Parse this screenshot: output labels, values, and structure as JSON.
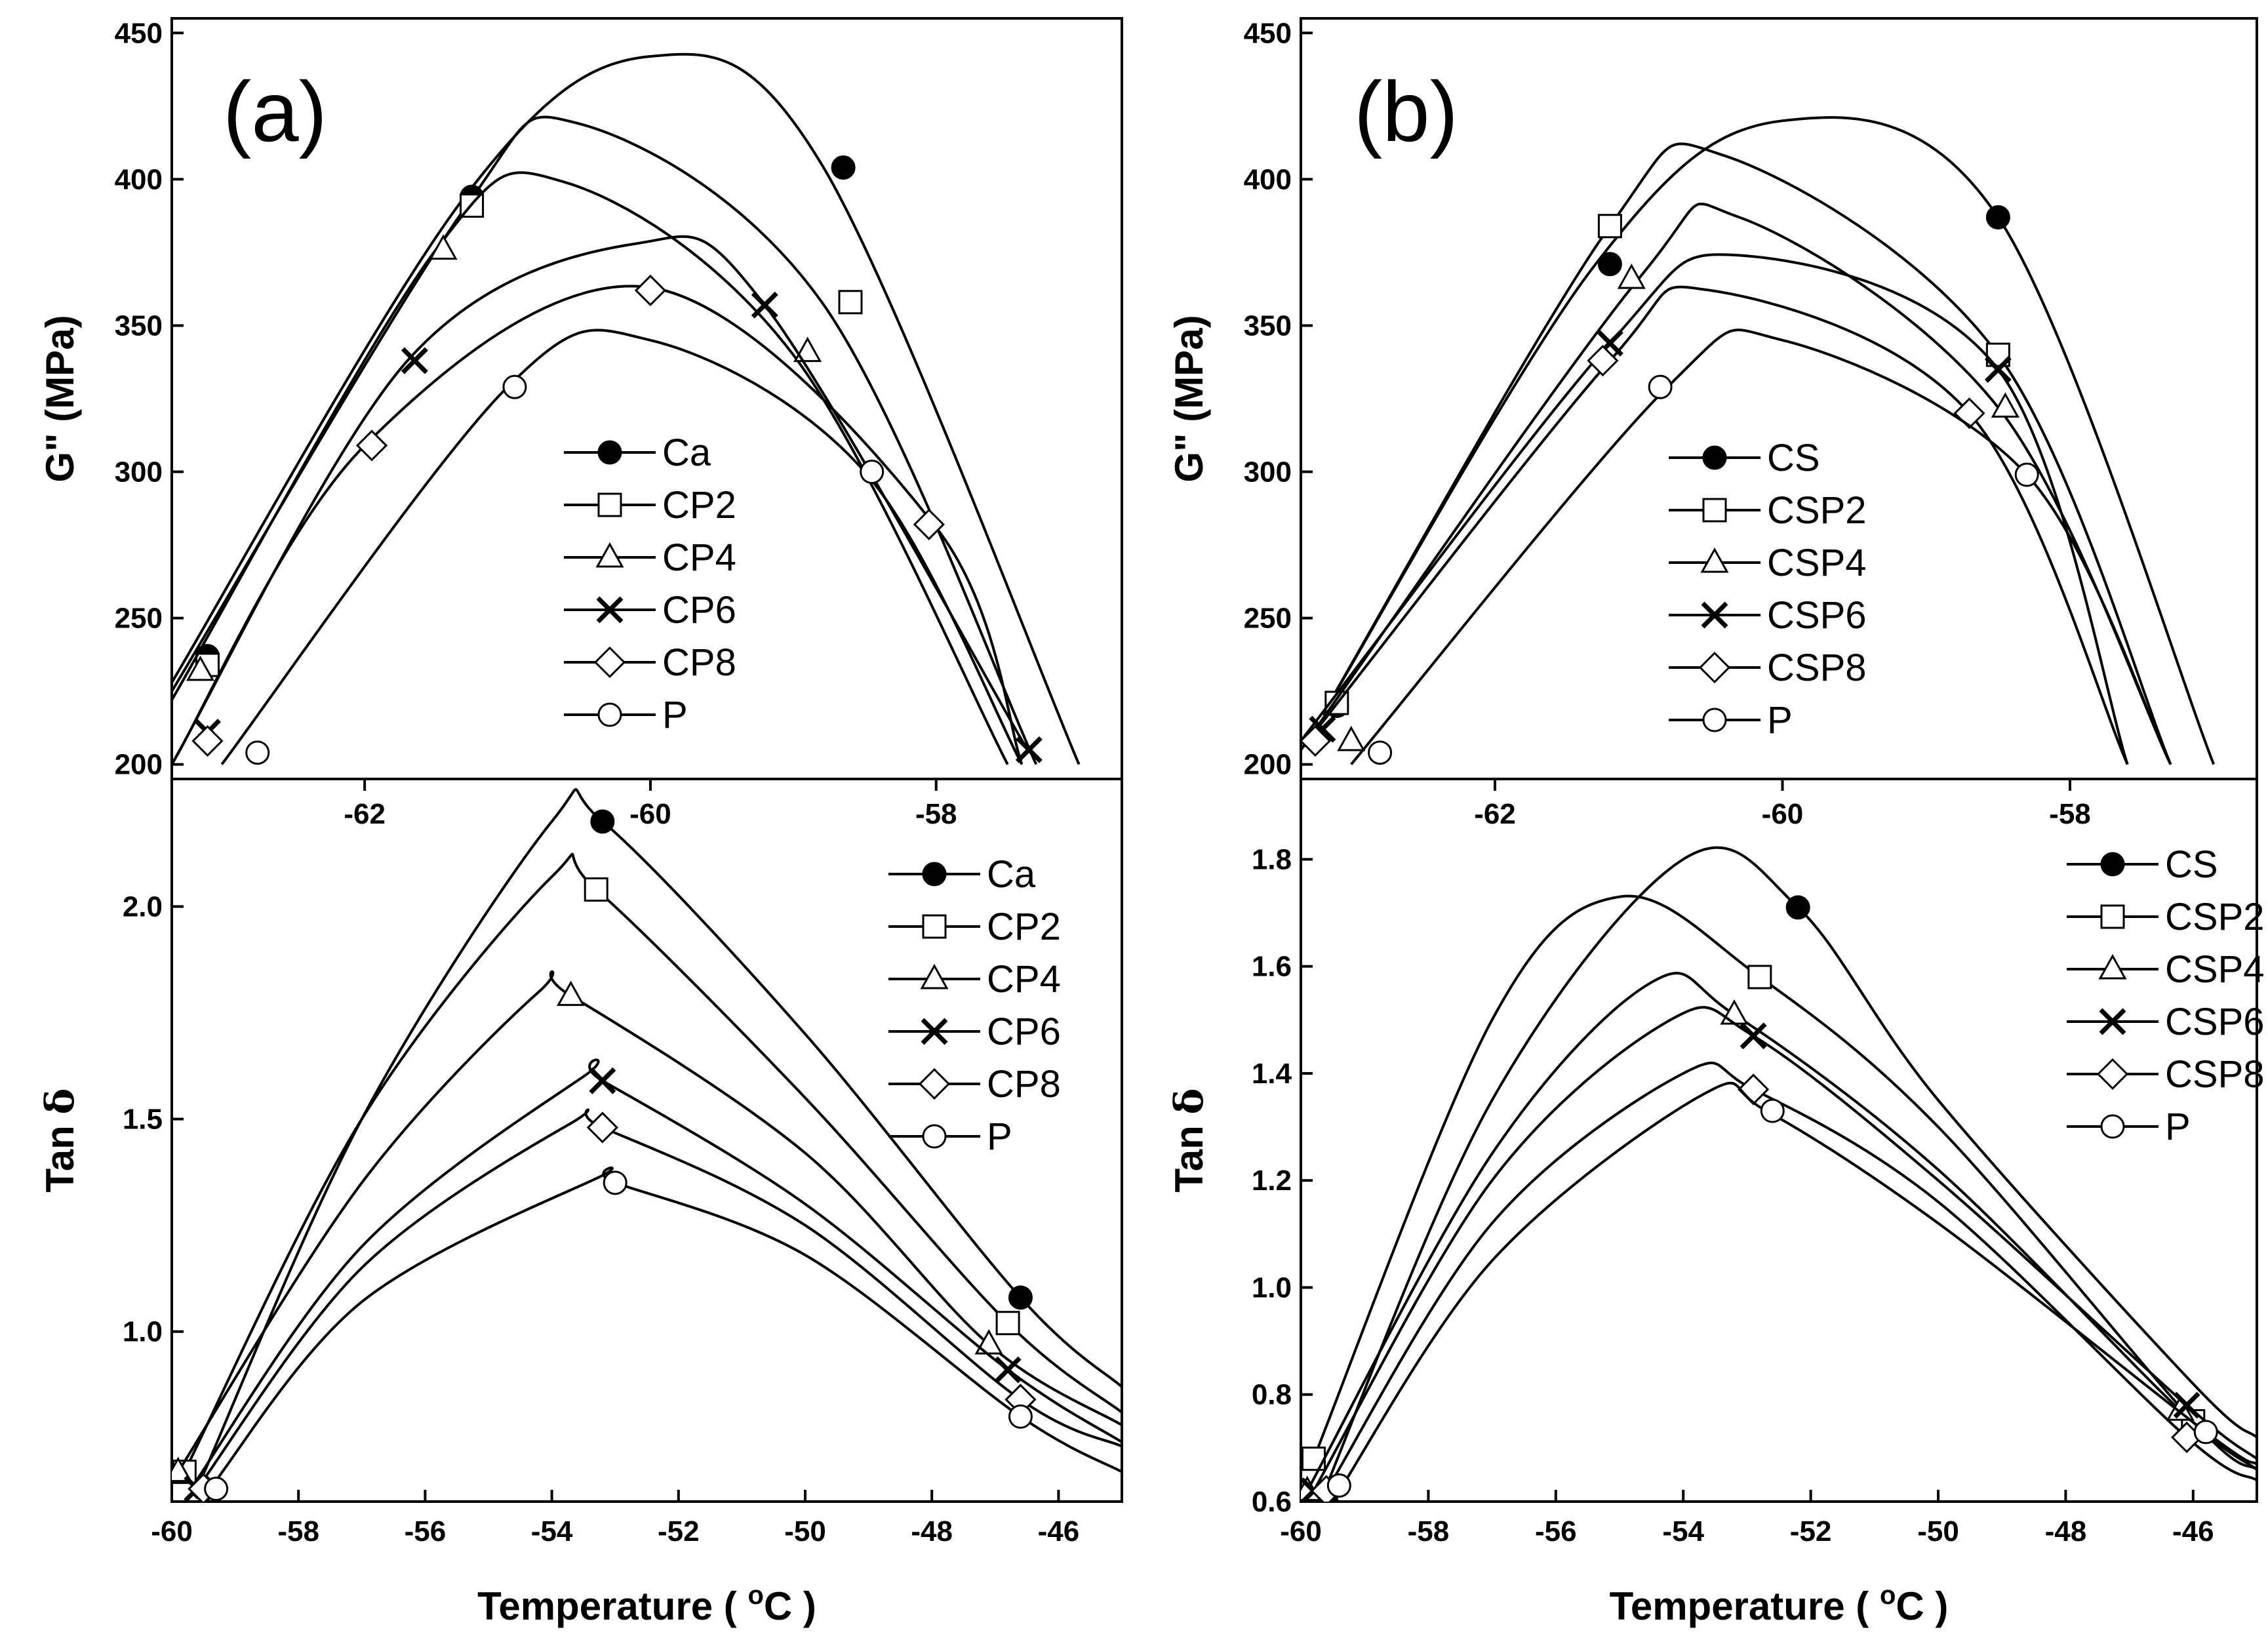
{
  "panel_tags": [
    "(a)",
    "(b)"
  ],
  "chart_data": [
    {
      "id": "a-top",
      "type": "line",
      "panel": "(a)",
      "ylabel": "G'' (MPa)",
      "xlim": [
        -63.35,
        -56.7
      ],
      "ylim": [
        195,
        455
      ],
      "xticks": [
        -62,
        -60,
        -58
      ],
      "yticks": [
        200,
        250,
        300,
        350,
        400,
        450
      ],
      "grid": false,
      "legend_position": "lower-middle",
      "series": [
        {
          "name": "Ca",
          "marker": "filled-circle",
          "x": [
            -63.35,
            -61.3,
            -60.0,
            -58.8,
            -57.0
          ],
          "y": [
            228,
            394,
            442,
            405,
            200
          ],
          "marker_x": [
            -63.1,
            -61.25,
            -58.65
          ],
          "marker_y": [
            237,
            394,
            404
          ]
        },
        {
          "name": "CP2",
          "marker": "open-square",
          "x": [
            -63.35,
            -61.3,
            -60.5,
            -58.8,
            -57.3
          ],
          "y": [
            225,
            390,
            419,
            358,
            200
          ],
          "marker_x": [
            -63.1,
            -61.25,
            -58.6
          ],
          "marker_y": [
            234,
            391,
            358
          ]
        },
        {
          "name": "CP4",
          "marker": "open-triangle",
          "x": [
            -63.35,
            -61.5,
            -60.6,
            -59.0,
            -57.5
          ],
          "y": [
            222,
            376,
            399,
            340,
            200
          ],
          "marker_x": [
            -63.15,
            -61.45,
            -58.9
          ],
          "marker_y": [
            232,
            376,
            341
          ]
        },
        {
          "name": "CP6",
          "marker": "x-cross",
          "x": [
            -63.35,
            -61.7,
            -60.1,
            -59.2,
            -57.35
          ],
          "y": [
            200,
            338,
            378,
            357,
            204
          ],
          "marker_x": [
            -63.1,
            -61.65,
            -59.2,
            -57.35
          ],
          "marker_y": [
            211,
            338,
            357,
            205
          ]
        },
        {
          "name": "CP8",
          "marker": "open-diamond",
          "x": [
            -63.35,
            -62.0,
            -60.0,
            -58.0,
            -57.4
          ],
          "y": [
            200,
            309,
            363,
            281,
            200
          ],
          "marker_x": [
            -63.1,
            -61.95,
            -60.0,
            -58.05
          ],
          "marker_y": [
            208,
            309,
            362,
            282
          ]
        },
        {
          "name": "P",
          "marker": "open-circle",
          "x": [
            -63.0,
            -61.0,
            -60.0,
            -58.5,
            -57.4
          ],
          "y": [
            200,
            329,
            345,
            300,
            200
          ],
          "marker_x": [
            -62.75,
            -60.95,
            -58.45
          ],
          "marker_y": [
            204,
            329,
            300
          ]
        }
      ]
    },
    {
      "id": "a-bottom",
      "type": "line",
      "panel": "(a)",
      "xlabel": "Temperature ( oC )",
      "ylabel": "Tan δ",
      "xlim": [
        -60,
        -45
      ],
      "ylim": [
        0.6,
        2.3
      ],
      "xticks": [
        -60,
        -58,
        -56,
        -54,
        -52,
        -50,
        -48,
        -46
      ],
      "yticks": [
        1.0,
        1.5,
        2.0
      ],
      "grid": false,
      "legend_position": "top-right",
      "series": [
        {
          "name": "Ca",
          "marker": "filled-circle",
          "x": [
            -59.6,
            -57.0,
            -54.0,
            -53.2,
            -50.0,
            -46.6,
            -45.0
          ],
          "y": [
            0.63,
            1.5,
            2.2,
            2.2,
            1.7,
            1.08,
            0.87
          ],
          "marker_x": [
            -59.5,
            -53.2,
            -46.6
          ],
          "marker_y": [
            0.63,
            2.2,
            1.08
          ]
        },
        {
          "name": "CP2",
          "marker": "open-square",
          "x": [
            -59.8,
            -57.0,
            -54.0,
            -53.3,
            -50.0,
            -46.8,
            -45.0
          ],
          "y": [
            0.67,
            1.5,
            2.07,
            2.04,
            1.55,
            1.02,
            0.81
          ],
          "marker_x": [
            -59.8,
            -53.3,
            -46.8
          ],
          "marker_y": [
            0.67,
            2.04,
            1.02
          ]
        },
        {
          "name": "CP4",
          "marker": "open-triangle",
          "x": [
            -59.9,
            -57.0,
            -54.2,
            -53.7,
            -50.0,
            -47.1,
            -45.0
          ],
          "y": [
            0.67,
            1.35,
            1.8,
            1.79,
            1.42,
            0.97,
            0.78
          ],
          "marker_x": [
            -59.9,
            -53.7,
            -47.1
          ],
          "marker_y": [
            0.67,
            1.79,
            0.97
          ]
        },
        {
          "name": "CP6",
          "marker": "x-cross",
          "x": [
            -59.7,
            -57.0,
            -53.5,
            -53.2,
            -50.0,
            -46.8,
            -45.0
          ],
          "y": [
            0.63,
            1.2,
            1.6,
            1.59,
            1.3,
            0.91,
            0.74
          ],
          "marker_x": [
            -59.6,
            -53.2,
            -46.8
          ],
          "marker_y": [
            0.63,
            1.59,
            0.91
          ]
        },
        {
          "name": "CP8",
          "marker": "open-diamond",
          "x": [
            -59.6,
            -57.0,
            -53.7,
            -53.2,
            -50.0,
            -46.6,
            -45.0
          ],
          "y": [
            0.63,
            1.15,
            1.49,
            1.48,
            1.25,
            0.84,
            0.73
          ],
          "marker_x": [
            -59.5,
            -53.2,
            -46.6
          ],
          "marker_y": [
            0.63,
            1.48,
            0.84
          ]
        },
        {
          "name": "P",
          "marker": "open-circle",
          "x": [
            -59.4,
            -57.0,
            -53.3,
            -53.0,
            -50.0,
            -46.6,
            -45.0
          ],
          "y": [
            0.63,
            1.07,
            1.36,
            1.35,
            1.18,
            0.8,
            0.67
          ],
          "marker_x": [
            -59.3,
            -53.0,
            -46.6
          ],
          "marker_y": [
            0.63,
            1.35,
            0.8
          ]
        }
      ]
    },
    {
      "id": "b-top",
      "type": "line",
      "panel": "(b)",
      "ylabel": "G'' (MPa)",
      "xlim": [
        -63.35,
        -56.7
      ],
      "ylim": [
        195,
        455
      ],
      "xticks": [
        -62,
        -60,
        -58
      ],
      "yticks": [
        200,
        250,
        300,
        350,
        400,
        450
      ],
      "grid": false,
      "legend_position": "lower-middle",
      "series": [
        {
          "name": "CS",
          "marker": "filled-circle",
          "x": [
            -63.2,
            -61.3,
            -60.0,
            -58.5,
            -57.0
          ],
          "y": [
            217,
            371,
            420,
            387,
            200
          ],
          "marker_x": [
            -63.1,
            -61.2,
            -58.5
          ],
          "marker_y": [
            220,
            371,
            387
          ]
        },
        {
          "name": "CSP2",
          "marker": "open-square",
          "x": [
            -63.2,
            -61.2,
            -60.4,
            -58.5,
            -57.3
          ],
          "y": [
            217,
            384,
            408,
            340,
            200
          ],
          "marker_x": [
            -63.1,
            -61.2,
            -58.5
          ],
          "marker_y": [
            221,
            384,
            340
          ]
        },
        {
          "name": "CSP4",
          "marker": "open-triangle",
          "x": [
            -63.35,
            -61.0,
            -60.3,
            -58.5,
            -57.3
          ],
          "y": [
            205,
            366,
            387,
            322,
            200
          ],
          "marker_x": [
            -63.0,
            -61.05,
            -58.45
          ],
          "marker_y": [
            208,
            366,
            322
          ]
        },
        {
          "name": "CSP6",
          "marker": "x-cross",
          "x": [
            -63.35,
            -61.2,
            -60.3,
            -58.5,
            -57.6
          ],
          "y": [
            208,
            344,
            374,
            335,
            200
          ],
          "marker_x": [
            -63.2,
            -61.2,
            -58.5
          ],
          "marker_y": [
            212,
            344,
            335
          ]
        },
        {
          "name": "CSP8",
          "marker": "open-diamond",
          "x": [
            -63.35,
            -61.2,
            -60.5,
            -58.7,
            -57.6
          ],
          "y": [
            205,
            338,
            362,
            320,
            200
          ],
          "marker_x": [
            -63.25,
            -61.25,
            -58.7
          ],
          "marker_y": [
            208,
            338,
            320
          ]
        },
        {
          "name": "P",
          "marker": "open-circle",
          "x": [
            -63.0,
            -60.8,
            -60.0,
            -58.3,
            -57.3
          ],
          "y": [
            200,
            329,
            345,
            299,
            200
          ],
          "marker_x": [
            -62.8,
            -60.85,
            -58.3
          ],
          "marker_y": [
            204,
            329,
            299
          ]
        }
      ]
    },
    {
      "id": "b-bottom",
      "type": "line",
      "panel": "(b)",
      "xlabel": "Temperature ( oC )",
      "ylabel": "Tan δ",
      "xlim": [
        -60,
        -45
      ],
      "ylim": [
        0.6,
        1.95
      ],
      "xticks": [
        -60,
        -58,
        -56,
        -54,
        -52,
        -50,
        -48,
        -46
      ],
      "yticks": [
        0.6,
        0.8,
        1.0,
        1.2,
        1.4,
        1.6,
        1.8
      ],
      "grid": false,
      "legend_position": "top-right",
      "series": [
        {
          "name": "CS",
          "marker": "filled-circle",
          "x": [
            -59.7,
            -57.0,
            -54.0,
            -52.2,
            -50.0,
            -46.0,
            -45.0
          ],
          "y": [
            0.6,
            1.35,
            1.8,
            1.71,
            1.35,
            0.82,
            0.72
          ],
          "marker_x": [
            -59.6,
            -52.2
          ],
          "marker_y": [
            0.6,
            1.71
          ]
        },
        {
          "name": "CSP2",
          "marker": "open-square",
          "x": [
            -59.8,
            -57.0,
            -55.0,
            -52.8,
            -50.0,
            -46.0,
            -45.0
          ],
          "y": [
            0.68,
            1.5,
            1.73,
            1.58,
            1.3,
            0.75,
            0.66
          ],
          "marker_x": [
            -59.8,
            -52.8,
            -46.0
          ],
          "marker_y": [
            0.68,
            1.58,
            0.75
          ]
        },
        {
          "name": "CSP4",
          "marker": "open-triangle",
          "x": [
            -59.9,
            -57.0,
            -54.5,
            -53.2,
            -50.0,
            -46.2,
            -45.0
          ],
          "y": [
            0.62,
            1.25,
            1.57,
            1.51,
            1.22,
            0.77,
            0.66
          ],
          "marker_x": [
            -59.9,
            -53.2,
            -46.2
          ],
          "marker_y": [
            0.62,
            1.51,
            0.77
          ]
        },
        {
          "name": "CSP6",
          "marker": "x-cross",
          "x": [
            -59.8,
            -57.0,
            -54.2,
            -52.9,
            -50.0,
            -46.1,
            -45.0
          ],
          "y": [
            0.62,
            1.2,
            1.5,
            1.47,
            1.2,
            0.78,
            0.68
          ],
          "marker_x": [
            -59.8,
            -52.9,
            -46.1
          ],
          "marker_y": [
            0.62,
            1.47,
            0.78
          ]
        },
        {
          "name": "CSP8",
          "marker": "open-diamond",
          "x": [
            -59.6,
            -57.0,
            -54.0,
            -52.9,
            -50.0,
            -46.1,
            -45.0
          ],
          "y": [
            0.62,
            1.12,
            1.4,
            1.37,
            1.16,
            0.72,
            0.64
          ],
          "marker_x": [
            -59.6,
            -52.9,
            -46.1
          ],
          "marker_y": [
            0.62,
            1.37,
            0.72
          ]
        },
        {
          "name": "P",
          "marker": "open-circle",
          "x": [
            -59.5,
            -57.0,
            -53.7,
            -52.7,
            -50.0,
            -45.8,
            -45.0
          ],
          "y": [
            0.6,
            1.05,
            1.36,
            1.33,
            1.12,
            0.73,
            0.67
          ],
          "marker_x": [
            -59.4,
            -52.6,
            -45.8
          ],
          "marker_y": [
            0.63,
            1.33,
            0.73
          ]
        }
      ]
    }
  ]
}
